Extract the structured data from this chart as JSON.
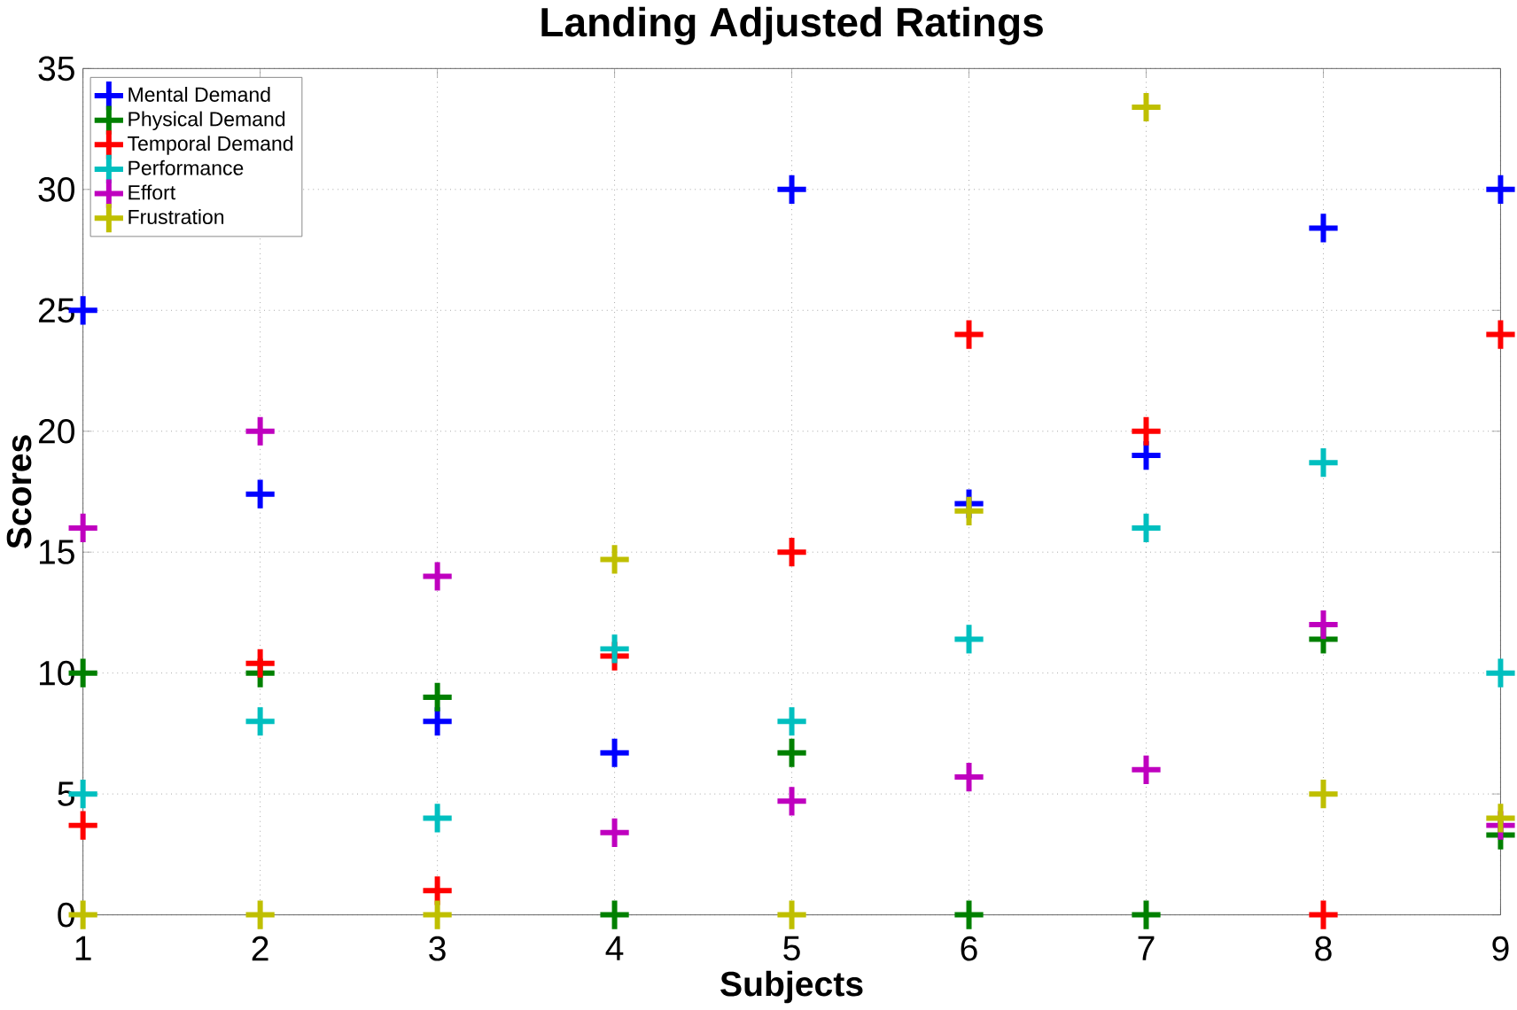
{
  "chart_data": {
    "type": "scatter",
    "title": "Landing Adjusted Ratings",
    "xlabel": "Subjects",
    "ylabel": "Scores",
    "x": [
      1,
      2,
      3,
      4,
      5,
      6,
      7,
      8,
      9
    ],
    "series": [
      {
        "name": "Mental Demand",
        "color": "#0000ff",
        "values": [
          25,
          17.4,
          8,
          6.7,
          30,
          17,
          19,
          28.4,
          30
        ]
      },
      {
        "name": "Physical Demand",
        "color": "#008000",
        "values": [
          10,
          10,
          9,
          0,
          6.7,
          0,
          0,
          11.4,
          3.3
        ]
      },
      {
        "name": "Temporal Demand",
        "color": "#ff0000",
        "values": [
          3.7,
          10.4,
          1,
          10.7,
          15,
          24,
          20,
          0,
          24
        ]
      },
      {
        "name": "Performance",
        "color": "#00bfbf",
        "values": [
          5,
          8,
          4,
          11,
          8,
          11.4,
          16,
          18.7,
          10
        ]
      },
      {
        "name": "Effort",
        "color": "#bf00bf",
        "values": [
          16,
          20,
          14,
          3.4,
          4.7,
          5.7,
          6,
          12,
          3.7
        ]
      },
      {
        "name": "Frustration",
        "color": "#bfbf00",
        "values": [
          0,
          0,
          0,
          14.7,
          0,
          16.7,
          33.4,
          5,
          4
        ]
      }
    ],
    "xlim": [
      1,
      9
    ],
    "ylim": [
      0,
      35
    ],
    "xticks": [
      1,
      2,
      3,
      4,
      5,
      6,
      7,
      8,
      9
    ],
    "yticks": [
      0,
      5,
      10,
      15,
      20,
      25,
      30,
      35
    ],
    "grid": true,
    "legend": "top left",
    "marker": "cross"
  }
}
